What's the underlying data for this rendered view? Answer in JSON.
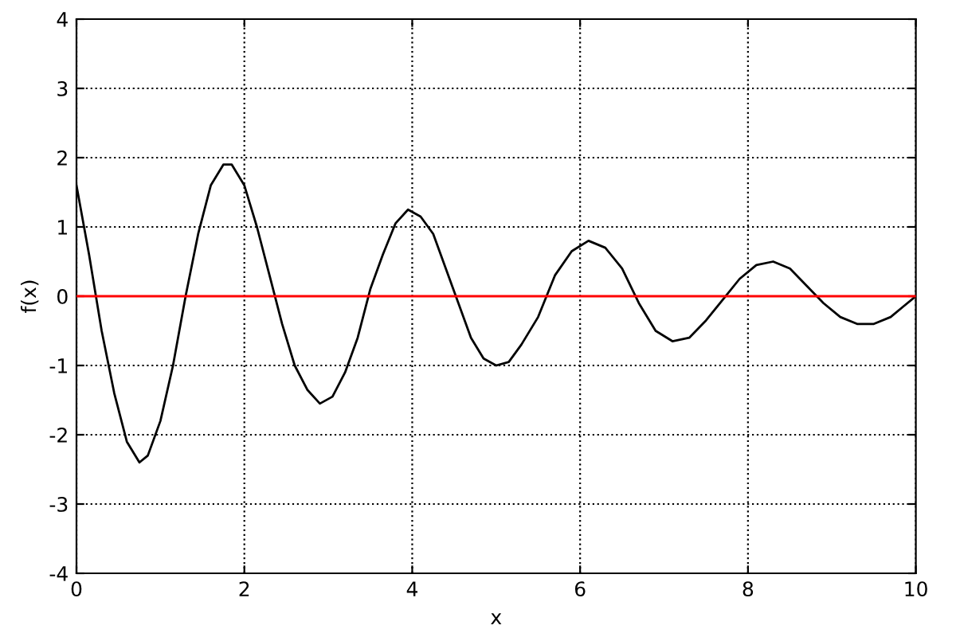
{
  "chart_data": {
    "type": "line",
    "xlabel": "x",
    "ylabel": "f(x)",
    "series": [
      {
        "color": "#000000",
        "x": [
          0,
          0.15,
          0.3,
          0.45,
          0.6,
          0.75,
          0.85,
          1.0,
          1.15,
          1.3,
          1.45,
          1.6,
          1.75,
          1.85,
          2.0,
          2.15,
          2.3,
          2.45,
          2.6,
          2.75,
          2.9,
          3.05,
          3.2,
          3.35,
          3.5,
          3.65,
          3.8,
          3.95,
          4.1,
          4.25,
          4.4,
          4.55,
          4.7,
          4.85,
          5.0,
          5.15,
          5.3,
          5.5,
          5.7,
          5.9,
          6.1,
          6.3,
          6.5,
          6.7,
          6.9,
          7.1,
          7.3,
          7.5,
          7.7,
          7.9,
          8.1,
          8.3,
          8.5,
          8.7,
          8.9,
          9.1,
          9.3,
          9.5,
          9.7,
          9.85,
          10
        ],
        "values": [
          1.6,
          0.6,
          -0.5,
          -1.4,
          -2.1,
          -2.4,
          -2.3,
          -1.8,
          -1.0,
          0.0,
          0.9,
          1.6,
          1.9,
          1.9,
          1.6,
          1.0,
          0.3,
          -0.4,
          -1.0,
          -1.35,
          -1.55,
          -1.45,
          -1.1,
          -0.6,
          0.1,
          0.6,
          1.05,
          1.25,
          1.15,
          0.9,
          0.4,
          -0.1,
          -0.6,
          -0.9,
          -1.0,
          -0.95,
          -0.7,
          -0.3,
          0.3,
          0.65,
          0.8,
          0.7,
          0.4,
          -0.1,
          -0.5,
          -0.65,
          -0.6,
          -0.35,
          -0.05,
          0.25,
          0.45,
          0.5,
          0.4,
          0.15,
          -0.1,
          -0.3,
          -0.4,
          -0.4,
          -0.3,
          -0.15,
          0.0
        ]
      }
    ],
    "ref_lines": [
      {
        "axis": "y",
        "value": 0,
        "color": "#ff0000"
      }
    ],
    "xlim": [
      0,
      10
    ],
    "ylim": [
      -4,
      4
    ],
    "xticks": [
      0,
      2,
      4,
      6,
      8,
      10
    ],
    "yticks": [
      -4,
      -3,
      -2,
      -1,
      0,
      1,
      2,
      3,
      4
    ],
    "grid": true,
    "marker": "none",
    "line_style": "solid",
    "legend": false
  }
}
